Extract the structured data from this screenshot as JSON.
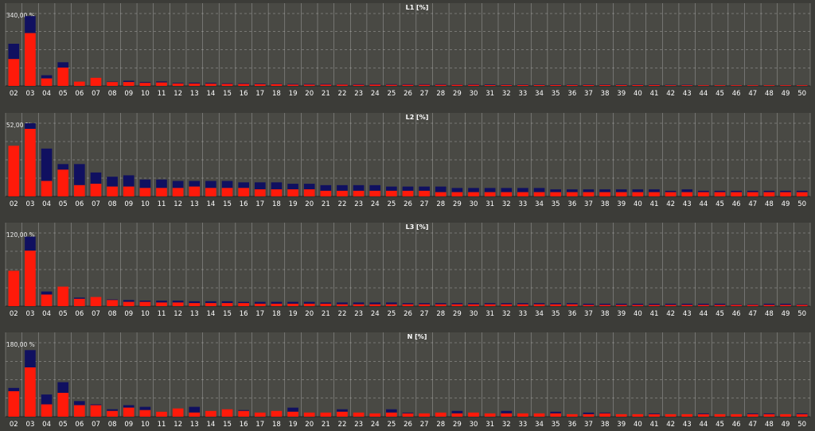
{
  "theme": {
    "background": "#3c3c38",
    "plot_background": "#494944",
    "grid": "#cfcfcf",
    "text": "#ffffff",
    "series_colors": [
      "#ff1a0a",
      "#101060"
    ]
  },
  "chart_data": [
    {
      "type": "bar",
      "title": "L1 [%]",
      "scale_label": "340,00 %",
      "ylim": [
        0,
        340
      ],
      "categories": [
        "02",
        "03",
        "04",
        "05",
        "06",
        "07",
        "08",
        "09",
        "10",
        "11",
        "12",
        "13",
        "14",
        "15",
        "16",
        "17",
        "18",
        "19",
        "20",
        "21",
        "22",
        "23",
        "24",
        "25",
        "26",
        "27",
        "28",
        "29",
        "30",
        "31",
        "32",
        "33",
        "34",
        "35",
        "36",
        "37",
        "38",
        "39",
        "40",
        "41",
        "42",
        "43",
        "44",
        "45",
        "46",
        "47",
        "48",
        "49",
        "50"
      ],
      "series": [
        {
          "values": [
            126,
            248,
            35,
            86,
            20,
            38,
            18,
            18,
            14,
            16,
            11,
            11,
            10,
            9,
            9,
            8,
            8,
            6,
            6,
            6,
            6,
            5,
            6,
            5,
            5,
            5,
            5,
            5,
            5,
            4,
            4,
            4,
            4,
            4,
            4,
            4,
            4,
            4,
            4,
            4,
            3,
            3,
            3,
            3,
            3,
            3,
            3,
            3,
            3
          ]
        },
        {
          "values": [
            72,
            80,
            15,
            25,
            0,
            0,
            2,
            6,
            4,
            5,
            3,
            4,
            4,
            3,
            3,
            3,
            2,
            3,
            3,
            3,
            2,
            3,
            3,
            3,
            3,
            3,
            3,
            2,
            3,
            3,
            2,
            2,
            2,
            2,
            2,
            2,
            2,
            2,
            2,
            2,
            2,
            2,
            1,
            1,
            1,
            1,
            1,
            1,
            1
          ]
        }
      ]
    },
    {
      "type": "bar",
      "title": "L2 [%]",
      "scale_label": "52,00 %",
      "ylim": [
        0,
        52
      ],
      "categories": [
        "02",
        "03",
        "04",
        "05",
        "06",
        "07",
        "08",
        "09",
        "10",
        "11",
        "12",
        "13",
        "14",
        "15",
        "16",
        "17",
        "18",
        "19",
        "20",
        "21",
        "22",
        "23",
        "24",
        "25",
        "26",
        "27",
        "28",
        "29",
        "30",
        "31",
        "32",
        "33",
        "34",
        "35",
        "36",
        "37",
        "38",
        "39",
        "40",
        "41",
        "42",
        "43",
        "44",
        "45",
        "46",
        "47",
        "48",
        "49",
        "50"
      ],
      "series": [
        {
          "values": [
            36,
            48,
            11,
            19,
            8,
            9,
            7,
            7,
            6,
            6,
            6,
            7,
            6,
            6,
            6,
            5,
            5,
            5,
            5,
            4,
            4,
            4,
            4,
            4,
            4,
            4,
            3,
            3,
            3,
            3,
            3,
            3,
            3,
            3,
            3,
            3,
            3,
            3,
            3,
            3,
            3,
            3,
            3,
            3,
            3,
            3,
            3,
            3,
            3
          ]
        },
        {
          "values": [
            0,
            4,
            23,
            4,
            15,
            8,
            7,
            8,
            6,
            6,
            5,
            4,
            5,
            5,
            4,
            5,
            5,
            4,
            4,
            4,
            4,
            4,
            4,
            3,
            3,
            3,
            4,
            3,
            3,
            3,
            3,
            3,
            3,
            2,
            2,
            2,
            2,
            2,
            2,
            2,
            1,
            2,
            1,
            1,
            1,
            1,
            1,
            1,
            1
          ]
        }
      ]
    },
    {
      "type": "bar",
      "title": "L3 [%]",
      "scale_label": "120,00 %",
      "ylim": [
        0,
        120
      ],
      "categories": [
        "02",
        "03",
        "04",
        "05",
        "06",
        "07",
        "08",
        "09",
        "10",
        "11",
        "12",
        "13",
        "14",
        "15",
        "16",
        "17",
        "18",
        "19",
        "20",
        "21",
        "22",
        "23",
        "24",
        "25",
        "26",
        "27",
        "28",
        "29",
        "30",
        "31",
        "32",
        "33",
        "34",
        "35",
        "36",
        "37",
        "38",
        "39",
        "40",
        "41",
        "42",
        "43",
        "44",
        "45",
        "46",
        "47",
        "48",
        "49",
        "50"
      ],
      "series": [
        {
          "values": [
            58,
            91,
            19,
            32,
            12,
            15,
            10,
            7,
            7,
            6,
            6,
            5,
            5,
            5,
            5,
            4,
            4,
            4,
            4,
            4,
            3,
            3,
            3,
            3,
            3,
            3,
            3,
            3,
            3,
            3,
            3,
            3,
            3,
            3,
            3,
            2,
            2,
            2,
            2,
            2,
            2,
            2,
            2,
            2,
            2,
            2,
            2,
            2,
            2
          ]
        },
        {
          "values": [
            0,
            23,
            5,
            0,
            2,
            0,
            1,
            3,
            2,
            3,
            3,
            3,
            3,
            3,
            2,
            3,
            3,
            3,
            3,
            2,
            3,
            3,
            3,
            3,
            2,
            2,
            2,
            2,
            2,
            2,
            2,
            2,
            2,
            2,
            2,
            2,
            2,
            2,
            2,
            2,
            2,
            2,
            2,
            2,
            1,
            1,
            2,
            2,
            1
          ]
        }
      ]
    },
    {
      "type": "bar",
      "title": "N [%]",
      "scale_label": "180,00 %",
      "ylim": [
        0,
        180
      ],
      "categories": [
        "02",
        "03",
        "04",
        "05",
        "06",
        "07",
        "08",
        "09",
        "10",
        "11",
        "12",
        "13",
        "14",
        "15",
        "16",
        "17",
        "18",
        "19",
        "20",
        "21",
        "22",
        "23",
        "24",
        "25",
        "26",
        "27",
        "28",
        "29",
        "30",
        "31",
        "32",
        "33",
        "34",
        "35",
        "36",
        "37",
        "38",
        "39",
        "40",
        "41",
        "42",
        "43",
        "44",
        "45",
        "46",
        "47",
        "48",
        "49",
        "50"
      ],
      "series": [
        {
          "values": [
            62,
            120,
            30,
            58,
            28,
            28,
            14,
            22,
            16,
            12,
            20,
            10,
            14,
            18,
            14,
            10,
            14,
            12,
            10,
            10,
            12,
            10,
            8,
            10,
            8,
            8,
            10,
            8,
            10,
            8,
            8,
            8,
            8,
            8,
            6,
            6,
            8,
            6,
            6,
            6,
            6,
            6,
            6,
            6,
            6,
            6,
            6,
            6,
            6
          ]
        },
        {
          "values": [
            8,
            42,
            24,
            26,
            10,
            2,
            4,
            6,
            8,
            0,
            0,
            14,
            0,
            0,
            2,
            0,
            0,
            10,
            0,
            0,
            6,
            0,
            0,
            8,
            2,
            0,
            0,
            6,
            0,
            0,
            6,
            0,
            0,
            4,
            0,
            4,
            2,
            0,
            0,
            2,
            0,
            0,
            2,
            0,
            0,
            2,
            2,
            0,
            2
          ]
        }
      ]
    }
  ]
}
